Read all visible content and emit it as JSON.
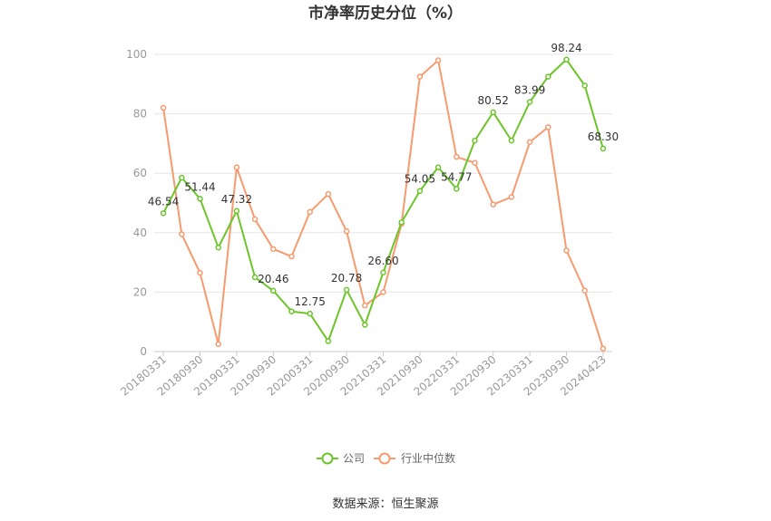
{
  "chart_data": {
    "type": "line",
    "title": "市净率历史分位（%）",
    "source": "数据来源：恒生聚源",
    "ylim": [
      0,
      100
    ],
    "y_ticks": [
      0,
      20,
      40,
      60,
      80,
      100
    ],
    "grid": true,
    "legend_position": "bottom",
    "x": [
      "20180331",
      "20180630",
      "20180930",
      "20181231",
      "20190331",
      "20190630",
      "20190930",
      "20191231",
      "20200331",
      "20200630",
      "20200930",
      "20201231",
      "20210331",
      "20210630",
      "20210930",
      "20211231",
      "20220331",
      "20220630",
      "20220930",
      "20221231",
      "20230331",
      "20230630",
      "20230930",
      "20231231",
      "20240423"
    ],
    "x_tick_labels": [
      "20180331",
      "20180930",
      "20190331",
      "20190930",
      "20200331",
      "20200930",
      "20210331",
      "20210930",
      "20220331",
      "20220930",
      "20230331",
      "20230930",
      "20240423"
    ],
    "series": [
      {
        "name": "公司",
        "color": "#6cc52a",
        "values": [
          46.54,
          58.5,
          51.44,
          35.0,
          47.32,
          25.0,
          20.46,
          13.5,
          12.75,
          3.5,
          20.78,
          9.0,
          26.6,
          43.5,
          54.05,
          62.0,
          54.77,
          71.0,
          80.52,
          71.0,
          83.99,
          92.5,
          98.24,
          89.5,
          68.3
        ],
        "labels": [
          "46.54",
          "",
          "51.44",
          "",
          "47.32",
          "",
          "20.46",
          "",
          "12.75",
          "",
          "20.78",
          "",
          "26.60",
          "",
          "54.05",
          "",
          "54.77",
          "",
          "80.52",
          "",
          "83.99",
          "",
          "98.24",
          "",
          "68.30"
        ]
      },
      {
        "name": "行业中位数",
        "color": "#f79a6e",
        "values": [
          82.0,
          39.5,
          26.5,
          2.5,
          62.0,
          44.5,
          34.5,
          32.0,
          47.0,
          53.0,
          40.5,
          15.5,
          20.0,
          43.0,
          92.5,
          98.0,
          65.5,
          63.5,
          49.5,
          52.0,
          70.5,
          75.5,
          34.0,
          20.5,
          1.0
        ]
      }
    ]
  }
}
